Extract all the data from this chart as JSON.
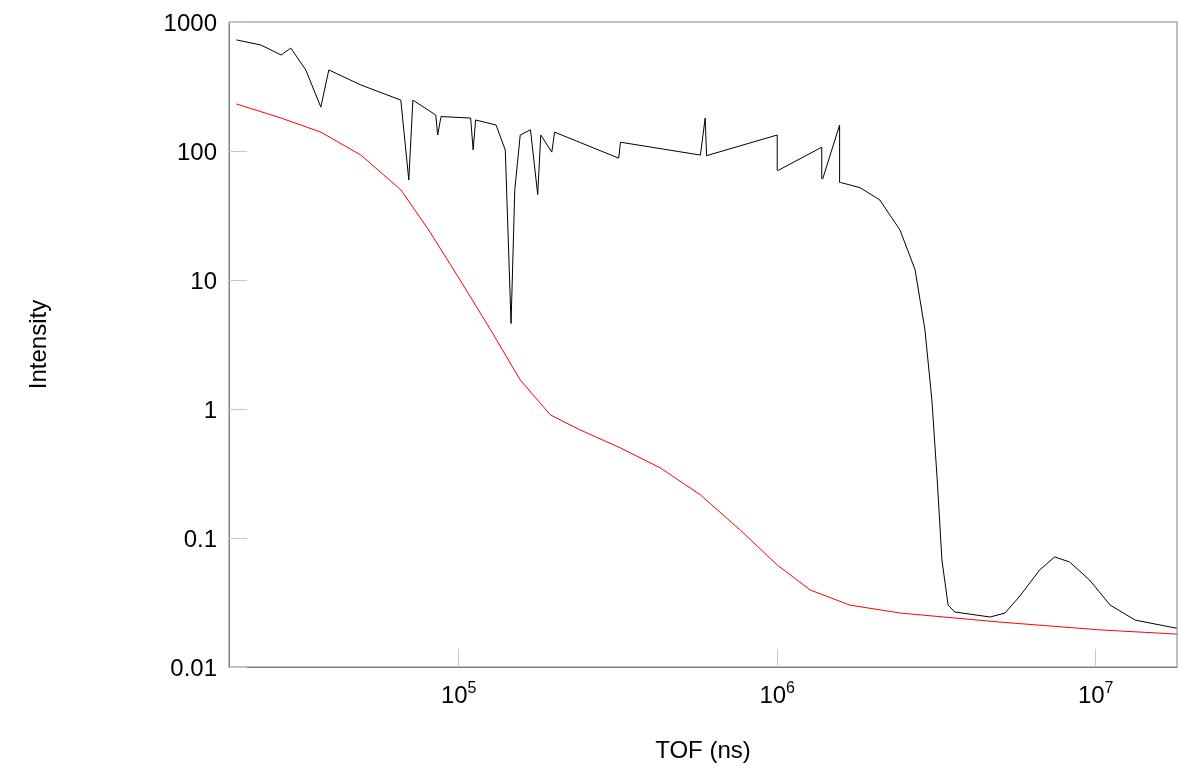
{
  "chart_data": {
    "type": "line",
    "xlabel": "TOF (ns)",
    "ylabel": "Intensity",
    "log": "xy",
    "grid": false,
    "marker": "none",
    "line_style": "solid",
    "xlim": [
      19000,
      18000000
    ],
    "xticks": [
      {
        "value": 100000,
        "label": "10$^{5}$"
      },
      {
        "value": 1000000,
        "label": "10$^{6}$"
      },
      {
        "value": 10000000,
        "label": "10$^{7}$"
      }
    ],
    "ylim": [
      0.01,
      1000
    ],
    "yticks": [
      0.01,
      0.1,
      1,
      10,
      100,
      1000
    ],
    "series": [
      {
        "color": "#000000",
        "x": [
          20100,
          23900,
          27700,
          29700,
          33100,
          36900,
          39100,
          49300,
          65800,
          69700,
          71800,
          84700,
          85900,
          88000,
          109000,
          111000,
          113000,
          131000,
          140000,
          146000,
          150000,
          156000,
          168000,
          177000,
          181000,
          196000,
          200000,
          318000,
          322000,
          574000,
          594000,
          600000,
          1000000,
          1000001,
          1010000,
          1380000,
          1380001,
          1390000,
          1570000,
          1570001,
          1580000,
          1820000,
          2100000,
          2430000,
          2710000,
          2910000,
          3060000,
          3180000,
          3290000,
          3440000,
          3610000,
          4660000,
          5190000,
          5780000,
          6670000,
          7430000,
          8280000,
          9570000,
          11100000,
          13300000,
          17900000
        ],
        "values": [
          725,
          664,
          555,
          628,
          425,
          219,
          425,
          325,
          248,
          59.6,
          248,
          190,
          133,
          185,
          180,
          102,
          174,
          159,
          102,
          4.6,
          50,
          133,
          146,
          46,
          133,
          98,
          140,
          88,
          117,
          93,
          180,
          92,
          133,
          71,
          71,
          107,
          61,
          61,
          159,
          57,
          57,
          52,
          41.7,
          24.4,
          12,
          4.1,
          1.17,
          0.282,
          0.0675,
          0.0302,
          0.0267,
          0.0244,
          0.0262,
          0.0355,
          0.0565,
          0.0713,
          0.0652,
          0.0472,
          0.0302,
          0.0231,
          0.02
        ]
      },
      {
        "color": "#ff0000",
        "x": [
          20100,
          27700,
          36900,
          49300,
          65800,
          80500,
          101000,
          126000,
          156000,
          194000,
          241000,
          322000,
          430000,
          574000,
          766000,
          1000000,
          1270000,
          1690000,
          2430000,
          5000000,
          10300000,
          17900000
        ],
        "values": [
          231,
          180,
          140,
          93,
          50,
          24.4,
          10,
          4.1,
          1.68,
          0.9,
          0.687,
          0.499,
          0.349,
          0.216,
          0.115,
          0.0618,
          0.0395,
          0.0302,
          0.0262,
          0.0223,
          0.0194,
          0.018
        ]
      }
    ]
  }
}
